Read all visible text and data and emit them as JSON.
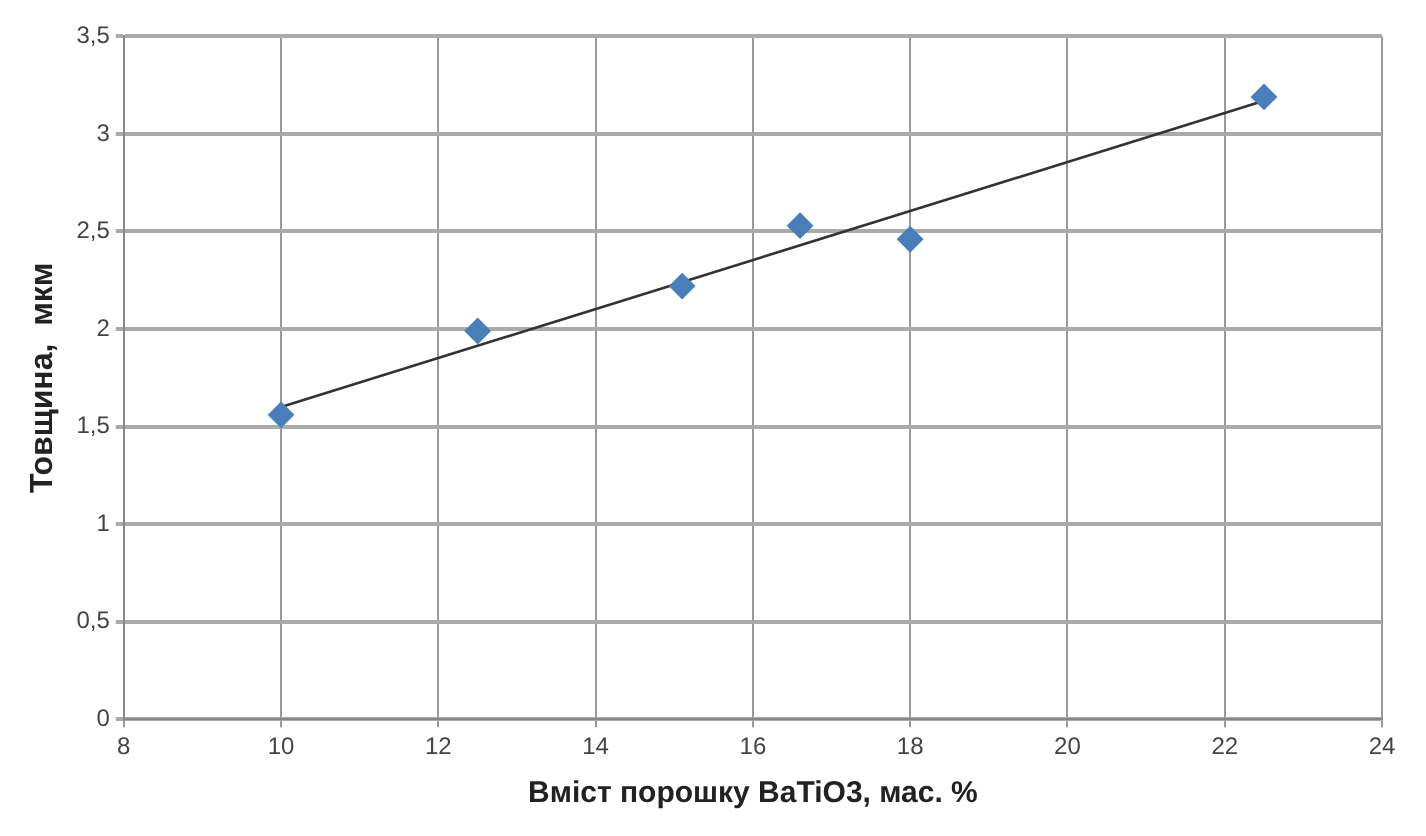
{
  "chart_data": {
    "type": "scatter",
    "xlabel": "Вміст порошку BaTiO3, мас. %",
    "ylabel": "Товщина,  мкм",
    "x": [
      10,
      12.5,
      15.1,
      16.6,
      18,
      22.5
    ],
    "series": [
      {
        "type": "scatter",
        "color": "#4a7ebb",
        "values": [
          1.56,
          1.99,
          2.22,
          2.53,
          2.46,
          3.19
        ],
        "marker": "diamond"
      },
      {
        "type": "line",
        "color": "#333333",
        "x": [
          10,
          22.5
        ],
        "values": [
          1.6,
          3.17
        ],
        "marker": "none",
        "line_style": "solid"
      }
    ],
    "xlim": [
      8,
      24
    ],
    "xticks": [
      8,
      10,
      12,
      14,
      16,
      18,
      20,
      22,
      24
    ],
    "ylim": [
      0,
      3.5
    ],
    "yticks": [
      0,
      {
        "value": 0.5,
        "label": "0,5"
      },
      1,
      {
        "value": 1.5,
        "label": "1,5"
      },
      2,
      {
        "value": 2.5,
        "label": "2,5"
      },
      3,
      {
        "value": 3.5,
        "label": "3,5"
      }
    ],
    "grid": true,
    "legend": false
  }
}
